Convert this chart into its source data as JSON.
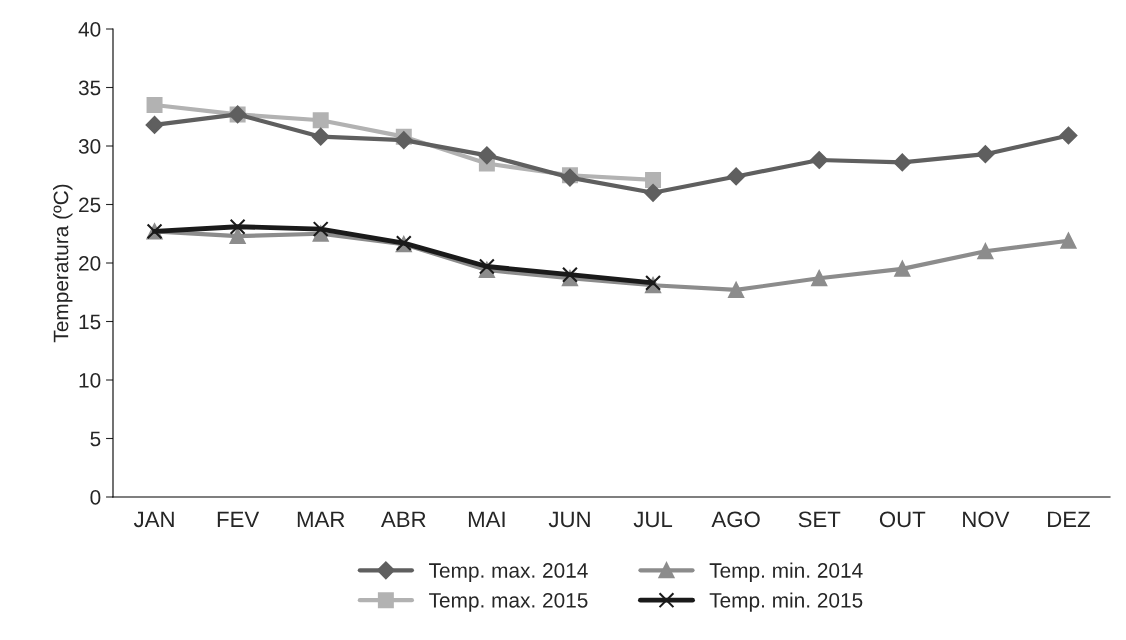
{
  "chart_data": {
    "type": "line",
    "ylabel": "Temperatura (ºC)",
    "categories": [
      "JAN",
      "FEV",
      "MAR",
      "ABR",
      "MAI",
      "JUN",
      "JUL",
      "AGO",
      "SET",
      "OUT",
      "NOV",
      "DEZ"
    ],
    "series": [
      {
        "name": "Temp. max. 2014",
        "color": "#5f5f5f",
        "marker": "diamond",
        "values": [
          31.8,
          32.7,
          30.8,
          30.5,
          29.2,
          27.3,
          26.0,
          27.4,
          28.8,
          28.6,
          29.3,
          30.9
        ]
      },
      {
        "name": "Temp. max. 2015",
        "color": "#b2b2b2",
        "marker": "square",
        "values": [
          33.5,
          32.7,
          32.2,
          30.8,
          28.5,
          27.5,
          27.1,
          null,
          null,
          null,
          null,
          null
        ]
      },
      {
        "name": "Temp. min. 2014",
        "color": "#8c8c8c",
        "marker": "triangle",
        "values": [
          22.7,
          22.3,
          22.5,
          21.6,
          19.4,
          18.7,
          18.1,
          17.7,
          18.7,
          19.5,
          21.0,
          21.9
        ]
      },
      {
        "name": "Temp. min. 2015",
        "color": "#1a1a1a",
        "marker": "cross",
        "values": [
          22.7,
          23.1,
          22.9,
          21.7,
          19.7,
          19.0,
          18.3,
          null,
          null,
          null,
          null,
          null
        ]
      }
    ],
    "ylim": [
      0,
      40
    ],
    "yticks": [
      0,
      5,
      10,
      15,
      20,
      25,
      30,
      35,
      40
    ],
    "grid": false,
    "legend": "bottom"
  }
}
